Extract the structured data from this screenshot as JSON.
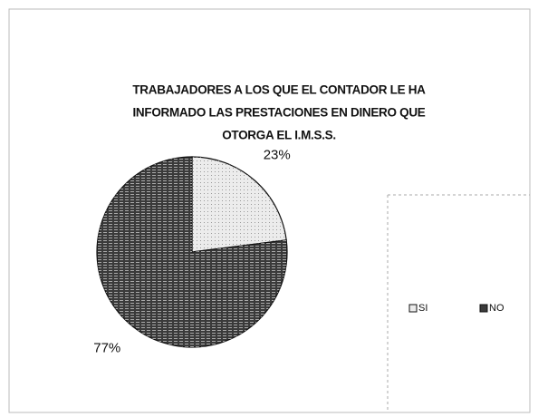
{
  "chart_data": {
    "type": "pie",
    "title": [
      "TRABAJADORES A LOS QUE EL CONTADOR LE HA",
      "INFORMADO LAS PRESTACIONES EN DINERO QUE",
      "OTORGA   EL I.M.S.S."
    ],
    "categories": [
      "SI",
      "NO"
    ],
    "values": [
      23,
      77
    ],
    "value_labels": [
      "23%",
      "77%"
    ],
    "colors": [
      "#ececec",
      "#3a3a3a"
    ],
    "legend": "right"
  }
}
